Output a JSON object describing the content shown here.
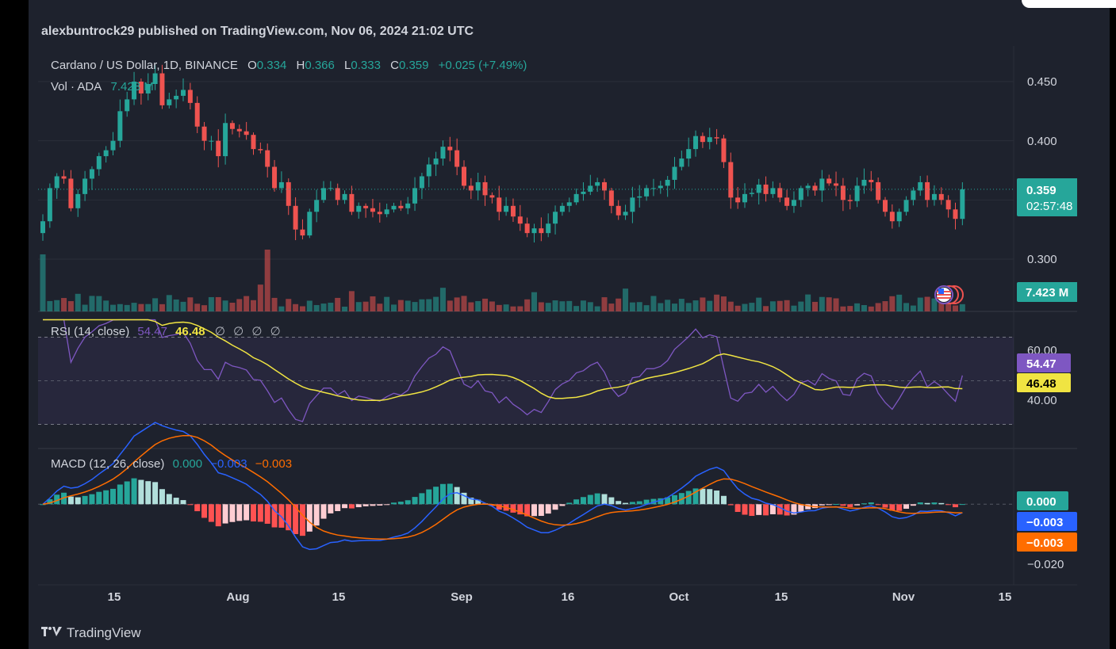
{
  "header": {
    "published": "alexbuntrock29 published on TradingView.com, Nov 06, 2024 21:02 UTC"
  },
  "legend": {
    "symbol": "Cardano / US Dollar, 1D, BINANCE",
    "o_label": "O",
    "o_value": "0.334",
    "h_label": "H",
    "h_value": "0.366",
    "l_label": "L",
    "l_value": "0.333",
    "c_label": "C",
    "c_value": "0.359",
    "change": "+0.025 (+7.49%)",
    "vol_label": "Vol · ADA",
    "vol_value": "7.423 M"
  },
  "price_axis": {
    "ticks": [
      "0.450",
      "0.400",
      "0.300"
    ],
    "last_price": "0.359",
    "countdown": "02:57:48",
    "volume_badge": "7.423 M"
  },
  "rsi": {
    "label": "RSI (14, close)",
    "value1": "54.47",
    "value2": "46.48",
    "extras": [
      "∅",
      "∅",
      "∅",
      "∅"
    ],
    "ticks": [
      "60.00",
      "40.00"
    ],
    "badge1": "54.47",
    "badge2": "46.48"
  },
  "macd": {
    "label": "MACD (12, 26, close)",
    "hist_value": "0.000",
    "macd_value": "−0.003",
    "signal_value": "−0.003",
    "ticks": [
      "−0.020"
    ],
    "badge_hist": "0.000",
    "badge_macd": "−0.003",
    "badge_signal": "−0.003"
  },
  "time_axis": [
    "15",
    "Aug",
    "15",
    "Sep",
    "16",
    "Oct",
    "15",
    "Nov",
    "15"
  ],
  "brand": {
    "name": "TradingView"
  },
  "colors": {
    "up": "#26a69a",
    "down": "#ef5350",
    "rsi": "#7e57c2",
    "rsi_ma": "#f0e442",
    "macd": "#2962ff",
    "signal": "#ff6d00",
    "background": "#1e222d"
  },
  "chart_data": {
    "type": "candlestick",
    "closes": [
      0.332,
      0.36,
      0.37,
      0.368,
      0.343,
      0.355,
      0.368,
      0.376,
      0.387,
      0.392,
      0.4,
      0.425,
      0.435,
      0.45,
      0.44,
      0.448,
      0.457,
      0.43,
      0.435,
      0.438,
      0.443,
      0.432,
      0.412,
      0.4,
      0.4,
      0.387,
      0.415,
      0.41,
      0.408,
      0.405,
      0.393,
      0.392,
      0.378,
      0.36,
      0.365,
      0.345,
      0.325,
      0.32,
      0.34,
      0.35,
      0.36,
      0.36,
      0.35,
      0.355,
      0.34,
      0.345,
      0.343,
      0.34,
      0.338,
      0.342,
      0.345,
      0.343,
      0.347,
      0.36,
      0.37,
      0.38,
      0.385,
      0.395,
      0.392,
      0.378,
      0.362,
      0.358,
      0.365,
      0.354,
      0.352,
      0.34,
      0.345,
      0.336,
      0.33,
      0.322,
      0.326,
      0.322,
      0.33,
      0.34,
      0.345,
      0.348,
      0.355,
      0.357,
      0.362,
      0.365,
      0.358,
      0.345,
      0.337,
      0.34,
      0.352,
      0.353,
      0.36,
      0.36,
      0.362,
      0.367,
      0.378,
      0.385,
      0.393,
      0.404,
      0.399,
      0.403,
      0.402,
      0.382,
      0.352,
      0.348,
      0.355,
      0.356,
      0.363,
      0.355,
      0.36,
      0.352,
      0.345,
      0.35,
      0.36,
      0.362,
      0.358,
      0.368,
      0.364,
      0.362,
      0.35,
      0.349,
      0.362,
      0.367,
      0.365,
      0.35,
      0.34,
      0.332,
      0.34,
      0.35,
      0.358,
      0.365,
      0.35,
      0.355,
      0.35,
      0.342,
      0.334,
      0.359
    ],
    "volume_max_m": 96,
    "rsi": {
      "range": [
        20,
        80
      ],
      "bands": [
        70,
        50,
        30
      ]
    },
    "macd": {
      "range": [
        -0.028,
        0.019
      ]
    }
  }
}
